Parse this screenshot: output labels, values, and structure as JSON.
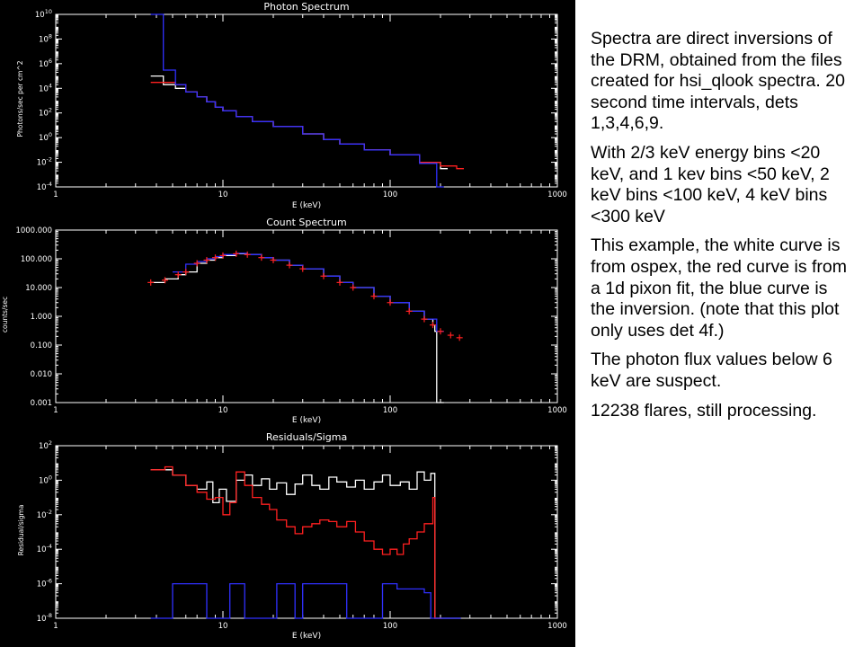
{
  "chart_data": [
    {
      "type": "line",
      "title": "Photon Spectrum",
      "xlabel": "E (keV)",
      "ylabel": "Photons/sec per cm^2",
      "xscale": "log",
      "yscale": "log",
      "xlim": [
        1,
        1000
      ],
      "ylim": [
        0.0001,
        10000000000
      ],
      "x_ticks": [
        {
          "v": 1,
          "t": "1"
        },
        {
          "v": 10,
          "t": "10"
        },
        {
          "v": 100,
          "t": "100"
        },
        {
          "v": 1000,
          "t": "1000"
        }
      ],
      "y_ticks": [
        {
          "v": 0.0001,
          "b": "10",
          "e": "-4"
        },
        {
          "v": 0.01,
          "b": "10",
          "e": "-2"
        },
        {
          "v": 1,
          "b": "10",
          "e": "0"
        },
        {
          "v": 100,
          "b": "10",
          "e": "2"
        },
        {
          "v": 10000,
          "b": "10",
          "e": "4"
        },
        {
          "v": 1000000,
          "b": "10",
          "e": "6"
        },
        {
          "v": 100000000,
          "b": "10",
          "e": "8"
        },
        {
          "v": 10000000000,
          "b": "10",
          "e": "10"
        }
      ],
      "series": [
        {
          "color": "#ffffff",
          "style": "step",
          "x": [
            3.7,
            4.4,
            5.2,
            6,
            7,
            8,
            9,
            10,
            12,
            15,
            20,
            30,
            40,
            50,
            70,
            100,
            150,
            200
          ],
          "values": [
            100000,
            20000,
            10000,
            5000,
            2000,
            800,
            300,
            150,
            50,
            20,
            8,
            2,
            0.7,
            0.3,
            0.1,
            0.04,
            0.01,
            0.003
          ]
        },
        {
          "color": "#ff2020",
          "style": "step",
          "x": [
            3.7,
            4.4,
            5.2,
            6,
            7,
            8,
            9,
            10,
            12,
            15,
            20,
            30,
            40,
            50,
            70,
            100,
            150,
            200,
            250
          ],
          "values": [
            30000,
            30000,
            20000,
            5000,
            2000,
            800,
            300,
            150,
            50,
            20,
            8,
            2,
            0.7,
            0.3,
            0.1,
            0.04,
            0.01,
            0.005,
            0.003
          ]
        },
        {
          "color": "#3030ff",
          "style": "step",
          "x": [
            3.7,
            4.4,
            5.2,
            6,
            7,
            8,
            9,
            10,
            12,
            15,
            20,
            30,
            40,
            50,
            70,
            100,
            150,
            190
          ],
          "values": [
            10000000000,
            300000,
            20000,
            5000,
            2000,
            800,
            300,
            150,
            50,
            20,
            8,
            2,
            0.7,
            0.3,
            0.1,
            0.04,
            0.008,
            0.0001
          ]
        }
      ]
    },
    {
      "type": "line",
      "title": "Count Spectrum",
      "xlabel": "E (keV)",
      "ylabel": "counts/sec",
      "xscale": "log",
      "yscale": "log",
      "xlim": [
        1,
        1000
      ],
      "ylim": [
        0.001,
        1000
      ],
      "x_ticks": [
        {
          "v": 1,
          "t": "1"
        },
        {
          "v": 10,
          "t": "10"
        },
        {
          "v": 100,
          "t": "100"
        },
        {
          "v": 1000,
          "t": "1000"
        }
      ],
      "y_ticks": [
        {
          "v": 0.001,
          "t": "0.001"
        },
        {
          "v": 0.01,
          "t": "0.010"
        },
        {
          "v": 0.1,
          "t": "0.100"
        },
        {
          "v": 1,
          "t": "1.000"
        },
        {
          "v": 10,
          "t": "10.000"
        },
        {
          "v": 100,
          "t": "100.000"
        },
        {
          "v": 1000,
          "t": "1000.000"
        }
      ],
      "series": [
        {
          "color": "#ffffff",
          "style": "step",
          "x": [
            3.7,
            4.5,
            5.4,
            6,
            7,
            8,
            9,
            10,
            12,
            14,
            17,
            20,
            25,
            30,
            40,
            50,
            60,
            80,
            100,
            130,
            160,
            180,
            185,
            190
          ],
          "values": [
            15,
            20,
            28,
            35,
            70,
            90,
            110,
            130,
            150,
            140,
            110,
            90,
            60,
            45,
            25,
            15,
            10,
            5,
            3,
            1.5,
            0.8,
            0.5,
            0.3,
            0.001
          ]
        },
        {
          "color": "#3030ff",
          "style": "step",
          "x": [
            5,
            6,
            7,
            8,
            9,
            10,
            12,
            14,
            17,
            20,
            25,
            30,
            40,
            50,
            60,
            80,
            100,
            130,
            160,
            190
          ],
          "values": [
            35,
            65,
            80,
            100,
            120,
            140,
            155,
            140,
            110,
            90,
            60,
            45,
            25,
            15,
            10,
            5,
            3,
            1.5,
            0.8,
            0.3
          ]
        },
        {
          "color": "#ff2020",
          "style": "points",
          "x": [
            3.7,
            4.5,
            5.4,
            6,
            7,
            8,
            9,
            10,
            12,
            14,
            17,
            20,
            25,
            30,
            40,
            50,
            60,
            80,
            100,
            130,
            160,
            180,
            200,
            230,
            260
          ],
          "values": [
            15,
            18,
            28,
            35,
            70,
            90,
            110,
            130,
            150,
            140,
            110,
            90,
            60,
            45,
            25,
            15,
            10,
            5,
            3,
            1.5,
            0.8,
            0.5,
            0.3,
            0.22,
            0.18
          ]
        }
      ]
    },
    {
      "type": "line",
      "title": "Residuals/Sigma",
      "xlabel": "E (keV)",
      "ylabel": "Residual/sigma",
      "xscale": "log",
      "yscale": "log",
      "xlim": [
        1,
        1000
      ],
      "ylim": [
        1e-08,
        100
      ],
      "x_ticks": [
        {
          "v": 1,
          "t": "1"
        },
        {
          "v": 10,
          "t": "10"
        },
        {
          "v": 100,
          "t": "100"
        },
        {
          "v": 1000,
          "t": "1000"
        }
      ],
      "y_ticks": [
        {
          "v": 1e-08,
          "b": "10",
          "e": "-8"
        },
        {
          "v": 1e-06,
          "b": "10",
          "e": "-6"
        },
        {
          "v": 0.0001,
          "b": "10",
          "e": "-4"
        },
        {
          "v": 0.01,
          "b": "10",
          "e": "-2"
        },
        {
          "v": 1,
          "b": "10",
          "e": "0"
        },
        {
          "v": 100,
          "b": "10",
          "e": "2"
        }
      ],
      "series": [
        {
          "color": "#ffffff",
          "style": "step",
          "x": [
            3.7,
            4.5,
            5,
            6,
            7,
            8,
            8.7,
            9.5,
            10.5,
            12,
            13.5,
            15,
            17,
            19,
            21,
            24,
            27,
            30,
            34,
            38,
            43,
            48,
            55,
            62,
            70,
            80,
            90,
            100,
            115,
            130,
            145,
            160,
            175,
            185,
            190,
            200,
            240
          ],
          "values": [
            4,
            4,
            2,
            0.5,
            0.3,
            0.8,
            0.05,
            0.3,
            0.06,
            1,
            2,
            0.5,
            1.2,
            0.3,
            0.7,
            0.15,
            0.6,
            2,
            0.5,
            0.3,
            1.5,
            0.8,
            0.4,
            1,
            0.3,
            0.8,
            2,
            0.5,
            0.8,
            0.3,
            3,
            1,
            2.5,
            1e-08,
            1e-08,
            1e-08,
            1e-08
          ]
        },
        {
          "color": "#ff2020",
          "style": "step",
          "x": [
            3.7,
            4.5,
            5,
            6,
            7,
            8,
            9,
            10,
            11,
            12,
            13.5,
            15,
            17,
            19,
            21,
            24,
            27,
            30,
            34,
            38,
            43,
            48,
            55,
            62,
            70,
            80,
            90,
            100,
            110,
            120,
            130,
            145,
            160,
            175,
            180,
            185
          ],
          "values": [
            4,
            6,
            2,
            0.5,
            0.2,
            0.08,
            0.1,
            0.01,
            0.05,
            3,
            0.5,
            0.1,
            0.04,
            0.02,
            0.005,
            0.002,
            0.0008,
            0.002,
            0.003,
            0.005,
            0.004,
            0.002,
            0.004,
            0.001,
            0.0003,
            0.0001,
            5e-05,
            0.0001,
            5e-05,
            0.0002,
            0.0004,
            0.001,
            0.003,
            0.003,
            0.1,
            1e-08
          ]
        },
        {
          "color": "#3030ff",
          "style": "step",
          "x": [
            3.7,
            4.5,
            5,
            6,
            7,
            8,
            9,
            10,
            11,
            12,
            13.5,
            15,
            17,
            19,
            21,
            24,
            27,
            30,
            34,
            38,
            43,
            48,
            55,
            62,
            70,
            80,
            90,
            100,
            110,
            120,
            130,
            145,
            160,
            175,
            180,
            240
          ],
          "values": [
            1e-08,
            1e-08,
            1e-06,
            1e-06,
            1e-06,
            1e-08,
            1e-08,
            1e-08,
            1e-06,
            1e-06,
            1e-08,
            1e-08,
            1e-08,
            1e-08,
            1e-06,
            1e-06,
            1e-08,
            1e-06,
            1e-06,
            1e-06,
            1e-06,
            1e-06,
            1e-08,
            1e-08,
            1e-08,
            1e-08,
            1e-06,
            1e-06,
            5e-07,
            5e-07,
            5e-07,
            5e-07,
            3e-07,
            1e-08,
            1e-08,
            1e-08
          ]
        }
      ]
    }
  ],
  "notes": [
    "Spectra are direct inversions of the DRM, obtained from the files created for hsi_qlook spectra. 20 second time intervals, dets 1,3,4,6,9.",
    "With 2/3 keV energy bins <20 keV, and 1 kev bins <50 keV, 2 keV bins <100 keV, 4 keV bins <300 keV",
    "This example, the white curve is from ospex, the red curve is from a 1d pixon fit, the blue curve is the inversion. (note that this plot only uses det 4f.)",
    "The photon flux values below 6 keV are suspect.",
    "12238 flares, still processing."
  ]
}
